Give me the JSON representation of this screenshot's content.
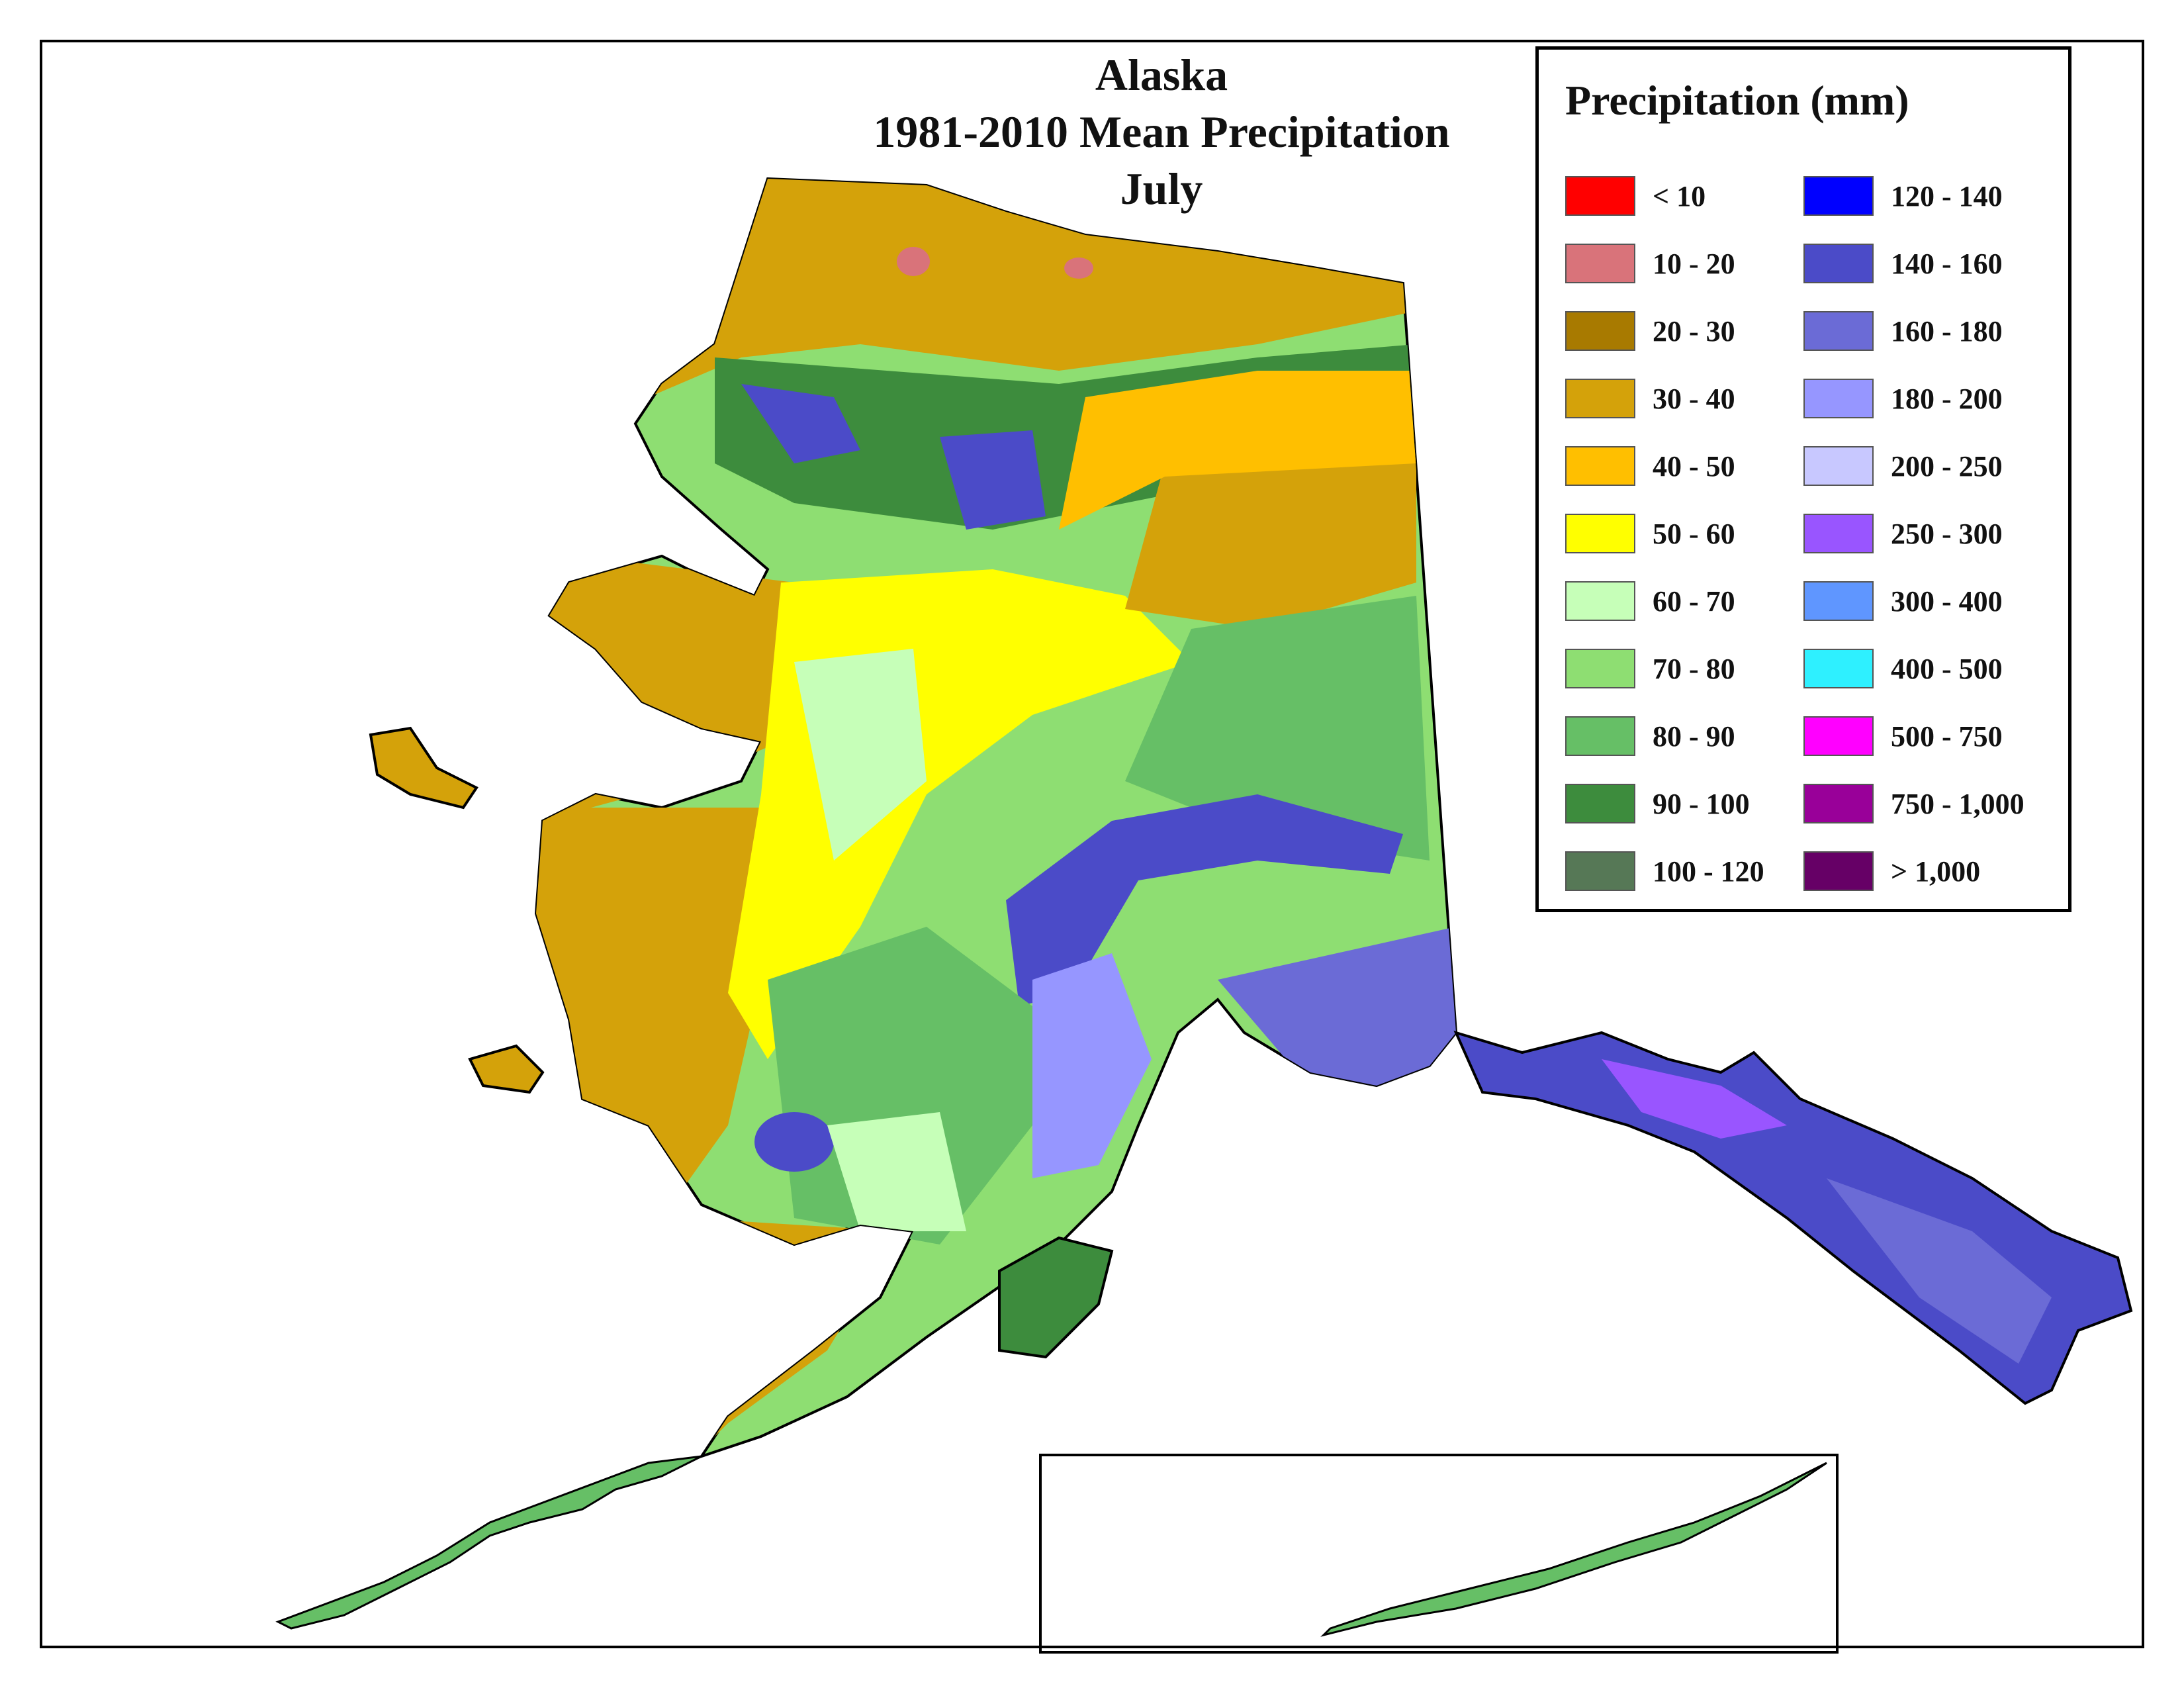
{
  "title": {
    "line1": "Alaska",
    "line2": "1981-2010 Mean Precipitation",
    "line3": "July"
  },
  "legend": {
    "title": "Precipitation (mm)",
    "classes": [
      {
        "label": "< 10",
        "color": "#ff0000"
      },
      {
        "label": "10 - 20",
        "color": "#d9737a"
      },
      {
        "label": "20 - 30",
        "color": "#a87a00"
      },
      {
        "label": "30 - 40",
        "color": "#d4a20a"
      },
      {
        "label": "40 - 50",
        "color": "#ffbf00"
      },
      {
        "label": "50 - 60",
        "color": "#ffff00"
      },
      {
        "label": "60 - 70",
        "color": "#c6ffb8"
      },
      {
        "label": "70 - 80",
        "color": "#8ede72"
      },
      {
        "label": "80 - 90",
        "color": "#66bf66"
      },
      {
        "label": "90 - 100",
        "color": "#3d8c3d"
      },
      {
        "label": "100 - 120",
        "color": "#567856"
      },
      {
        "label": "120 - 140",
        "color": "#0000ff"
      },
      {
        "label": "140 - 160",
        "color": "#4b4bc8"
      },
      {
        "label": "160 - 180",
        "color": "#6b6bd6"
      },
      {
        "label": "180 - 200",
        "color": "#9696ff"
      },
      {
        "label": "200 - 250",
        "color": "#c8c8ff"
      },
      {
        "label": "250 - 300",
        "color": "#9955ff"
      },
      {
        "label": "300 - 400",
        "color": "#5f96ff"
      },
      {
        "label": "400 - 500",
        "color": "#2ef0ff"
      },
      {
        "label": "500 - 750",
        "color": "#ff00ff"
      },
      {
        "label": "750 - 1,000",
        "color": "#990099"
      },
      {
        "label": "> 1,000",
        "color": "#660066"
      }
    ]
  }
}
